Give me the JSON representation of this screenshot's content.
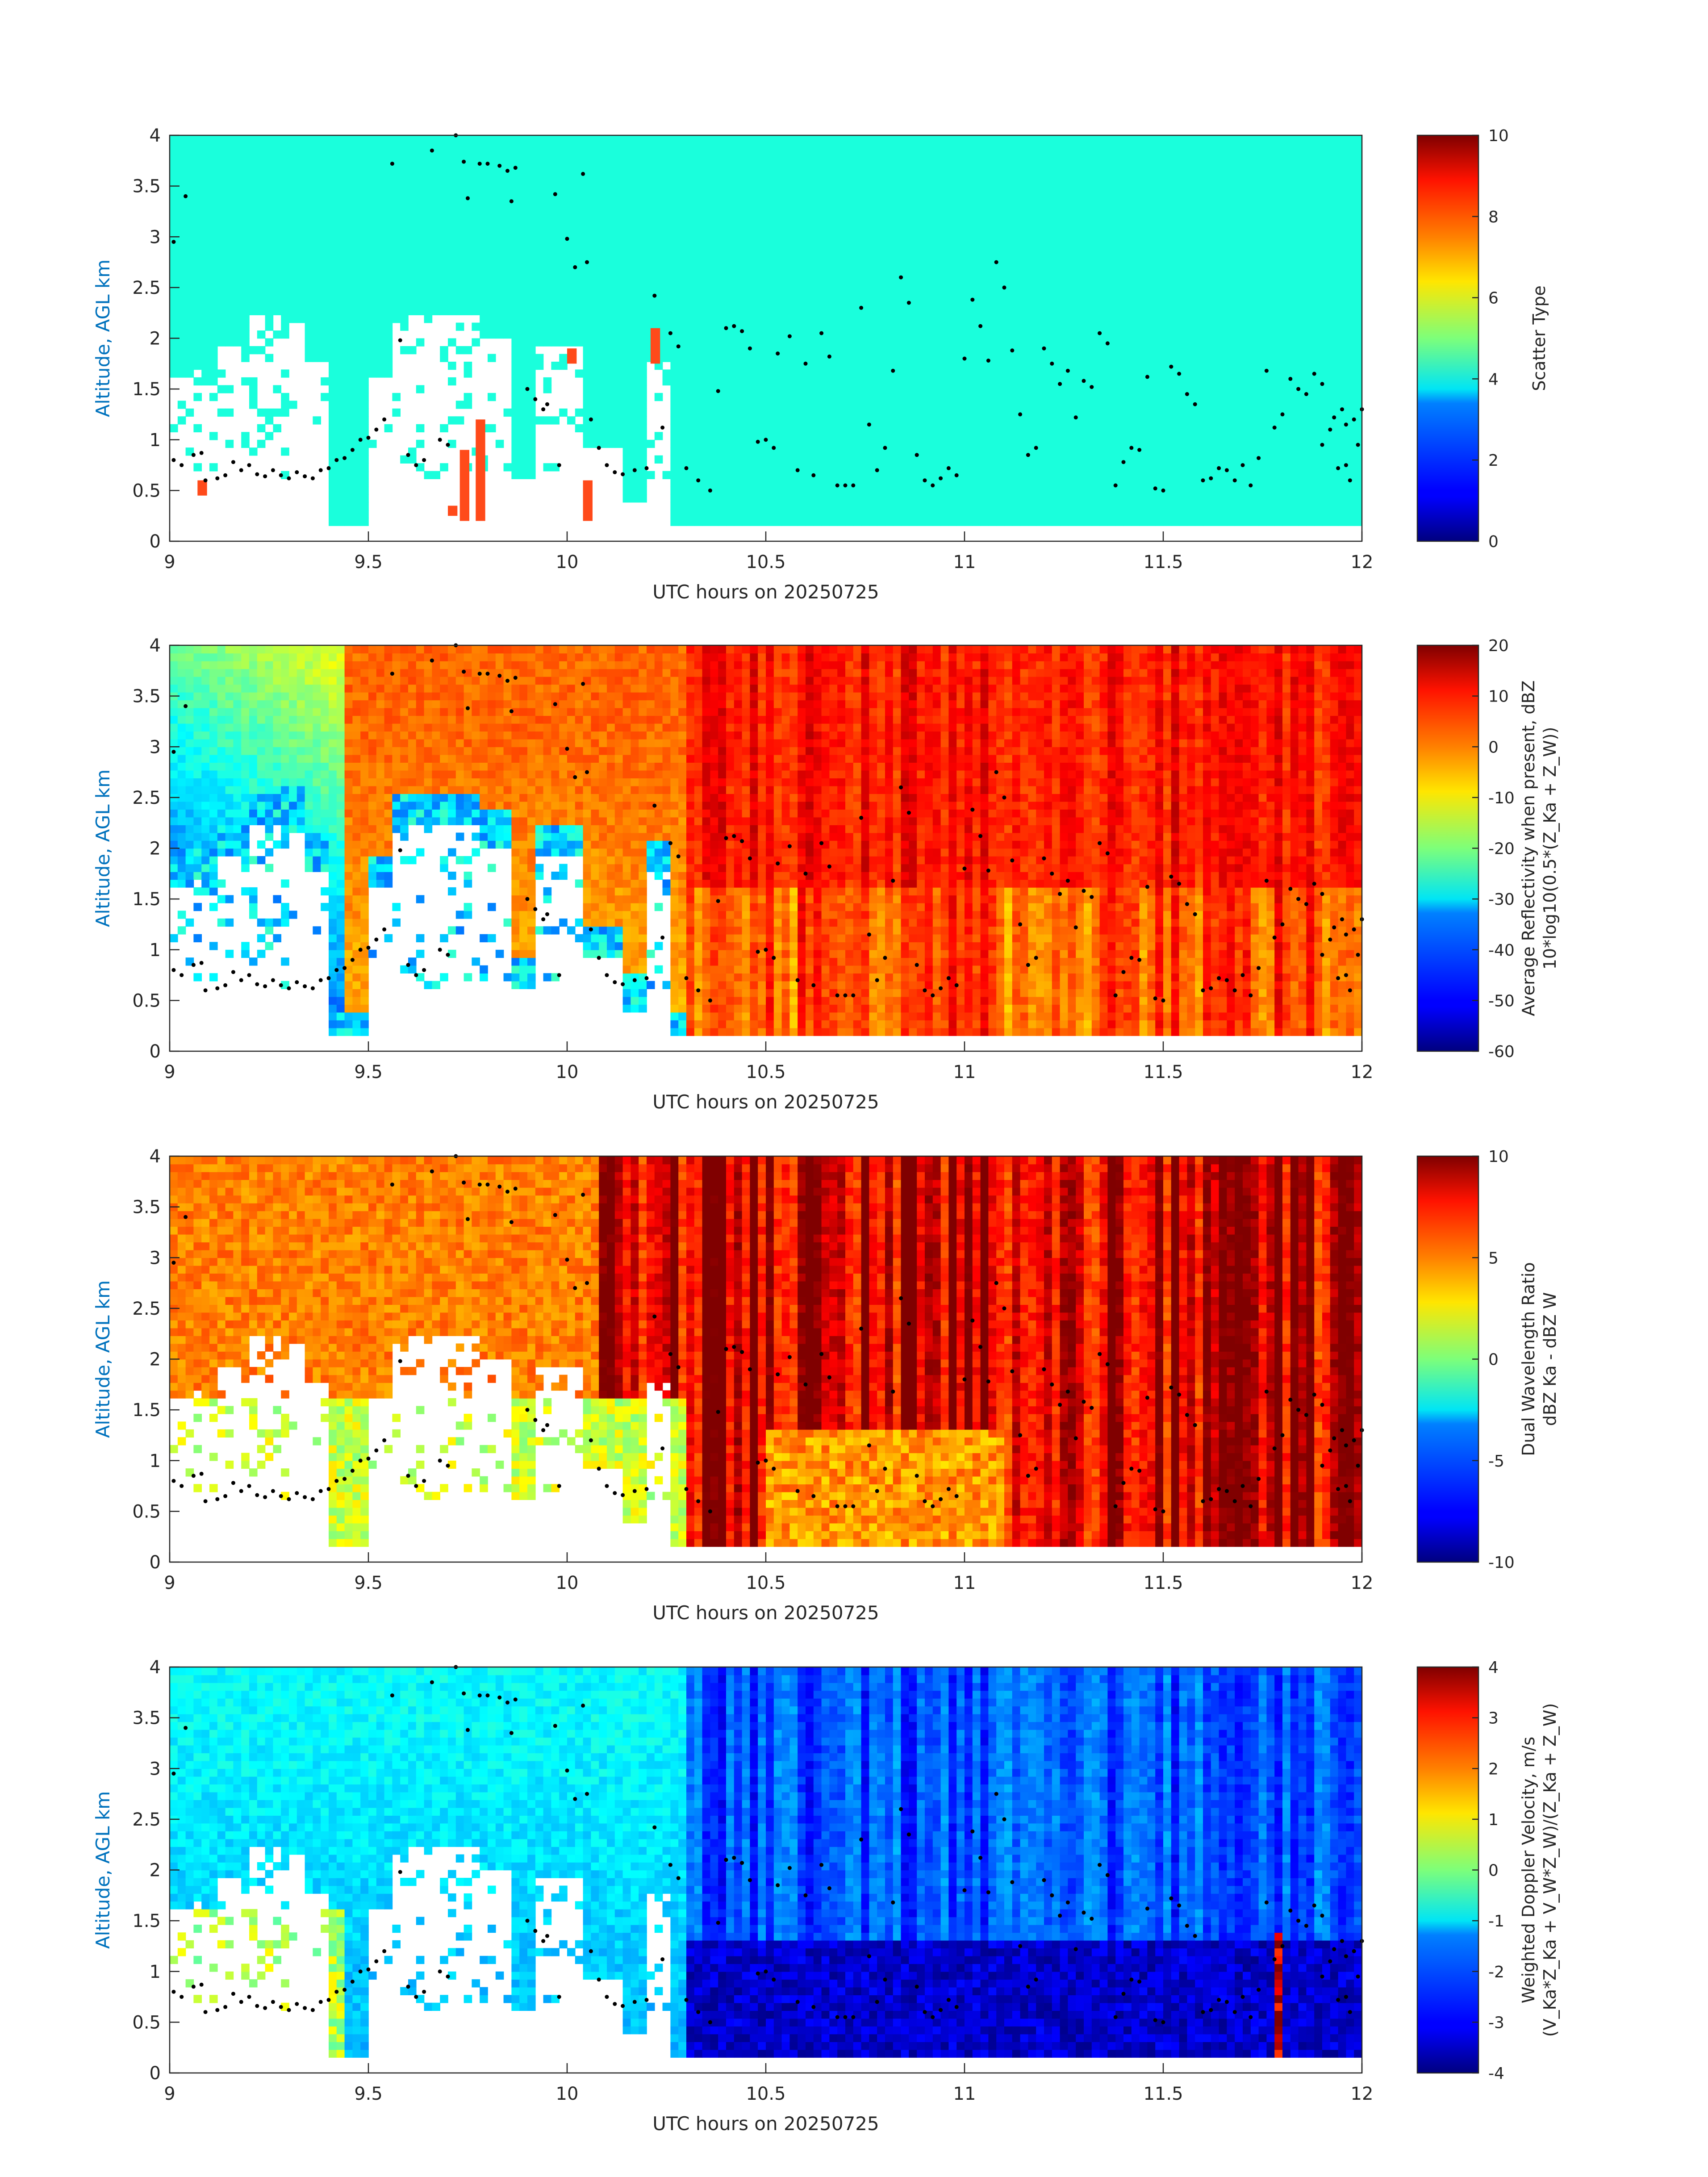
{
  "chart_data": [
    {
      "type": "heatmap",
      "id": "scatter-type",
      "xlabel": "UTC hours on 20250725",
      "ylabel": "Altitude, AGL km",
      "xlim": [
        9,
        12
      ],
      "ylim": [
        0,
        4
      ],
      "xticks": [
        "9",
        "9.5",
        "10",
        "10.5",
        "11",
        "11.5",
        "12"
      ],
      "yticks": [
        "0",
        "0.5",
        "1",
        "1.5",
        "2",
        "2.5",
        "3",
        "3.5",
        "4"
      ],
      "colorbar": {
        "label_lines": [
          "Scatter Type"
        ],
        "range": [
          0,
          10
        ],
        "ticks": [
          "0",
          "2",
          "4",
          "6",
          "8",
          "10"
        ]
      },
      "field": "scatter_type",
      "colormap": "jet"
    },
    {
      "type": "heatmap",
      "id": "reflectivity",
      "xlabel": "UTC hours on 20250725",
      "ylabel": "Altitude, AGL km",
      "xlim": [
        9,
        12
      ],
      "ylim": [
        0,
        4
      ],
      "xticks": [
        "9",
        "9.5",
        "10",
        "10.5",
        "11",
        "11.5",
        "12"
      ],
      "yticks": [
        "0",
        "0.5",
        "1",
        "1.5",
        "2",
        "2.5",
        "3",
        "3.5",
        "4"
      ],
      "colorbar": {
        "label_lines": [
          "Average Reflectivity when present, dBZ",
          "10*log10(0.5*(Z_Ka + Z_W))"
        ],
        "range": [
          -60,
          20
        ],
        "ticks": [
          "-60",
          "-50",
          "-40",
          "-30",
          "-20",
          "-10",
          "0",
          "10",
          "20"
        ]
      },
      "field": "reflectivity",
      "colormap": "jet"
    },
    {
      "type": "heatmap",
      "id": "dual-wavelength-ratio",
      "xlabel": "UTC hours on 20250725",
      "ylabel": "Altitude, AGL km",
      "xlim": [
        9,
        12
      ],
      "ylim": [
        0,
        4
      ],
      "xticks": [
        "9",
        "9.5",
        "10",
        "10.5",
        "11",
        "11.5",
        "12"
      ],
      "yticks": [
        "0",
        "0.5",
        "1",
        "1.5",
        "2",
        "2.5",
        "3",
        "3.5",
        "4"
      ],
      "colorbar": {
        "label_lines": [
          "Dual Wavelength Ratio",
          "dBZ Ka - dBZ W"
        ],
        "range": [
          -10,
          10
        ],
        "ticks": [
          "-10",
          "-5",
          "0",
          "5",
          "10"
        ]
      },
      "field": "dwr",
      "colormap": "jet"
    },
    {
      "type": "heatmap",
      "id": "doppler-velocity",
      "xlabel": "UTC hours on 20250725",
      "ylabel": "Altitude, AGL km",
      "xlim": [
        9,
        12
      ],
      "ylim": [
        0,
        4
      ],
      "xticks": [
        "9",
        "9.5",
        "10",
        "10.5",
        "11",
        "11.5",
        "12"
      ],
      "yticks": [
        "0",
        "0.5",
        "1",
        "1.5",
        "2",
        "2.5",
        "3",
        "3.5",
        "4"
      ],
      "colorbar": {
        "label_lines": [
          "Weighted Doppler Velocity, m/s",
          "(V_Ka*Z_Ka + V_W*Z_W)/(Z_Ka + Z_W)"
        ],
        "range": [
          -4,
          4
        ],
        "ticks": [
          "-4",
          "-3",
          "-2",
          "-1",
          "0",
          "1",
          "2",
          "3",
          "4"
        ]
      },
      "field": "velocity",
      "colormap": "jet"
    }
  ],
  "cloud_base_points": [
    [
      9.01,
      2.95
    ],
    [
      9.04,
      3.4
    ],
    [
      9.01,
      0.8
    ],
    [
      9.03,
      0.75
    ],
    [
      9.06,
      0.85
    ],
    [
      9.08,
      0.87
    ],
    [
      9.09,
      0.6
    ],
    [
      9.12,
      0.62
    ],
    [
      9.14,
      0.65
    ],
    [
      9.16,
      0.78
    ],
    [
      9.18,
      0.7
    ],
    [
      9.2,
      0.75
    ],
    [
      9.22,
      0.66
    ],
    [
      9.24,
      0.64
    ],
    [
      9.26,
      0.7
    ],
    [
      9.28,
      0.65
    ],
    [
      9.3,
      0.62
    ],
    [
      9.32,
      0.68
    ],
    [
      9.34,
      0.64
    ],
    [
      9.36,
      0.62
    ],
    [
      9.38,
      0.7
    ],
    [
      9.4,
      0.72
    ],
    [
      9.42,
      0.8
    ],
    [
      9.44,
      0.82
    ],
    [
      9.46,
      0.9
    ],
    [
      9.48,
      1.0
    ],
    [
      9.5,
      1.02
    ],
    [
      9.52,
      1.1
    ],
    [
      9.54,
      1.2
    ],
    [
      9.56,
      3.72
    ],
    [
      9.58,
      1.98
    ],
    [
      9.6,
      0.85
    ],
    [
      9.62,
      0.75
    ],
    [
      9.64,
      0.8
    ],
    [
      9.66,
      3.85
    ],
    [
      9.68,
      1.0
    ],
    [
      9.7,
      0.95
    ],
    [
      9.72,
      4.0
    ],
    [
      9.74,
      3.74
    ],
    [
      9.75,
      3.38
    ],
    [
      9.78,
      3.72
    ],
    [
      9.8,
      3.72
    ],
    [
      9.83,
      3.7
    ],
    [
      9.85,
      3.65
    ],
    [
      9.86,
      3.35
    ],
    [
      9.87,
      3.68
    ],
    [
      9.9,
      1.5
    ],
    [
      9.92,
      1.4
    ],
    [
      9.94,
      1.3
    ],
    [
      9.95,
      1.35
    ],
    [
      9.97,
      3.42
    ],
    [
      9.98,
      0.75
    ],
    [
      10.0,
      2.98
    ],
    [
      10.02,
      2.7
    ],
    [
      10.04,
      3.62
    ],
    [
      10.05,
      2.75
    ],
    [
      10.06,
      1.2
    ],
    [
      10.08,
      0.92
    ],
    [
      10.1,
      0.75
    ],
    [
      10.12,
      0.68
    ],
    [
      10.14,
      0.66
    ],
    [
      10.17,
      0.7
    ],
    [
      10.2,
      0.72
    ],
    [
      10.22,
      2.42
    ],
    [
      10.24,
      1.12
    ],
    [
      10.26,
      2.05
    ],
    [
      10.28,
      1.92
    ],
    [
      10.3,
      0.72
    ],
    [
      10.33,
      0.6
    ],
    [
      10.36,
      0.5
    ],
    [
      10.38,
      1.48
    ],
    [
      10.4,
      2.1
    ],
    [
      10.42,
      2.12
    ],
    [
      10.44,
      2.07
    ],
    [
      10.46,
      1.9
    ],
    [
      10.48,
      0.98
    ],
    [
      10.5,
      1.0
    ],
    [
      10.52,
      0.92
    ],
    [
      10.53,
      1.85
    ],
    [
      10.56,
      2.02
    ],
    [
      10.58,
      0.7
    ],
    [
      10.6,
      1.75
    ],
    [
      10.62,
      0.65
    ],
    [
      10.64,
      2.05
    ],
    [
      10.66,
      1.82
    ],
    [
      10.68,
      0.55
    ],
    [
      10.7,
      0.55
    ],
    [
      10.72,
      0.55
    ],
    [
      10.74,
      2.3
    ],
    [
      10.76,
      1.15
    ],
    [
      10.78,
      0.7
    ],
    [
      10.8,
      0.92
    ],
    [
      10.82,
      1.68
    ],
    [
      10.84,
      2.6
    ],
    [
      10.86,
      2.35
    ],
    [
      10.88,
      0.85
    ],
    [
      10.9,
      0.6
    ],
    [
      10.92,
      0.55
    ],
    [
      10.94,
      0.62
    ],
    [
      10.96,
      0.72
    ],
    [
      10.98,
      0.65
    ],
    [
      11.0,
      1.8
    ],
    [
      11.02,
      2.38
    ],
    [
      11.04,
      2.12
    ],
    [
      11.06,
      1.78
    ],
    [
      11.08,
      2.75
    ],
    [
      11.1,
      2.5
    ],
    [
      11.12,
      1.88
    ],
    [
      11.14,
      1.25
    ],
    [
      11.16,
      0.85
    ],
    [
      11.18,
      0.92
    ],
    [
      11.2,
      1.9
    ],
    [
      11.22,
      1.75
    ],
    [
      11.24,
      1.55
    ],
    [
      11.26,
      1.68
    ],
    [
      11.28,
      1.22
    ],
    [
      11.3,
      1.58
    ],
    [
      11.32,
      1.52
    ],
    [
      11.34,
      2.05
    ],
    [
      11.36,
      1.95
    ],
    [
      11.38,
      0.55
    ],
    [
      11.4,
      0.78
    ],
    [
      11.42,
      0.92
    ],
    [
      11.44,
      0.9
    ],
    [
      11.46,
      1.62
    ],
    [
      11.48,
      0.52
    ],
    [
      11.5,
      0.5
    ],
    [
      11.52,
      1.72
    ],
    [
      11.54,
      1.65
    ],
    [
      11.56,
      1.45
    ],
    [
      11.58,
      1.35
    ],
    [
      11.6,
      0.6
    ],
    [
      11.62,
      0.62
    ],
    [
      11.64,
      0.72
    ],
    [
      11.66,
      0.7
    ],
    [
      11.68,
      0.6
    ],
    [
      11.7,
      0.75
    ],
    [
      11.72,
      0.55
    ],
    [
      11.74,
      0.82
    ],
    [
      11.76,
      1.68
    ],
    [
      11.78,
      1.12
    ],
    [
      11.8,
      1.25
    ],
    [
      11.82,
      1.6
    ],
    [
      11.84,
      1.5
    ],
    [
      11.86,
      1.45
    ],
    [
      11.88,
      1.65
    ],
    [
      11.9,
      1.55
    ],
    [
      11.92,
      1.1
    ],
    [
      11.94,
      0.72
    ],
    [
      11.96,
      0.75
    ],
    [
      11.98,
      1.2
    ],
    [
      12.0,
      1.3
    ],
    [
      11.9,
      0.95
    ],
    [
      11.93,
      1.22
    ],
    [
      11.96,
      1.15
    ],
    [
      11.99,
      0.95
    ],
    [
      11.97,
      0.6
    ],
    [
      11.95,
      1.3
    ]
  ]
}
